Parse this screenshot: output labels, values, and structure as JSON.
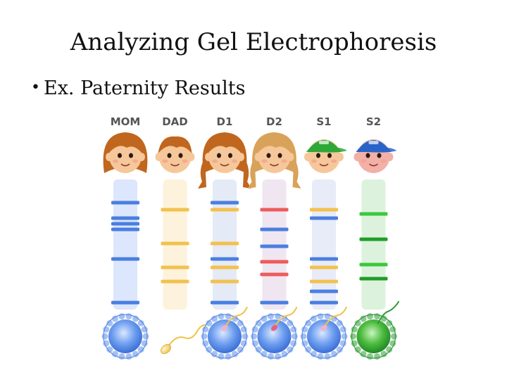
{
  "slide": {
    "title": "Analyzing Gel Electrophoresis",
    "bullet": "Ex. Paternity Results"
  },
  "lanes": [
    {
      "label": "MOM",
      "person": "mother",
      "hair": "#c0661e",
      "skin": "#f6c79a",
      "strip": "#d6e2fb",
      "cell": "egg",
      "bands": [
        {
          "level": 1.0,
          "color": "#4a7fe0"
        },
        {
          "level": 2.1,
          "color": "#4a7fe0"
        },
        {
          "level": 2.5,
          "color": "#4a7fe0"
        },
        {
          "level": 2.9,
          "color": "#4a7fe0"
        },
        {
          "level": 5.0,
          "color": "#4a7fe0"
        },
        {
          "level": 8.1,
          "color": "#4a7fe0"
        }
      ]
    },
    {
      "label": "DAD",
      "person": "father",
      "hair": "#c0661e",
      "skin": "#f6c79a",
      "strip": "#fdf1d6",
      "cell": "sperm",
      "bands": [
        {
          "level": 1.5,
          "color": "#f2c14e"
        },
        {
          "level": 3.9,
          "color": "#f2c14e"
        },
        {
          "level": 5.6,
          "color": "#f2c14e"
        },
        {
          "level": 6.6,
          "color": "#f2c14e"
        }
      ]
    },
    {
      "label": "D1",
      "person": "daughter",
      "hair": "#c0661e",
      "skin": "#f6c79a",
      "strip": "#e0e6f6",
      "cell": "egg",
      "bands": [
        {
          "level": 1.0,
          "color": "#4a7fe0"
        },
        {
          "level": 1.5,
          "color": "#f2c14e"
        },
        {
          "level": 3.9,
          "color": "#f2c14e"
        },
        {
          "level": 5.0,
          "color": "#4a7fe0"
        },
        {
          "level": 5.6,
          "color": "#f2c14e"
        },
        {
          "level": 6.6,
          "color": "#f2c14e"
        },
        {
          "level": 8.1,
          "color": "#4a7fe0"
        }
      ]
    },
    {
      "label": "D2",
      "person": "daughter",
      "hair": "#d9a25a",
      "skin": "#f6c79a",
      "strip": "#ece2ef",
      "cell": "egg",
      "bands": [
        {
          "level": 1.5,
          "color": "#ec5c5c"
        },
        {
          "level": 2.9,
          "color": "#4a7fe0"
        },
        {
          "level": 4.1,
          "color": "#4a7fe0"
        },
        {
          "level": 5.2,
          "color": "#ec5c5c"
        },
        {
          "level": 6.1,
          "color": "#ec5c5c"
        },
        {
          "level": 8.1,
          "color": "#4a7fe0"
        }
      ]
    },
    {
      "label": "S1",
      "person": "son",
      "hair": "#c0661e",
      "skin": "#f6c79a",
      "strip": "#e4e9f8",
      "cell": "egg",
      "cap": "#2ea836",
      "bands": [
        {
          "level": 1.5,
          "color": "#f2c14e"
        },
        {
          "level": 2.1,
          "color": "#4a7fe0"
        },
        {
          "level": 5.0,
          "color": "#4a7fe0"
        },
        {
          "level": 5.6,
          "color": "#f2c14e"
        },
        {
          "level": 6.6,
          "color": "#f2c14e"
        },
        {
          "level": 7.3,
          "color": "#4a7fe0"
        },
        {
          "level": 8.1,
          "color": "#4a7fe0"
        }
      ]
    },
    {
      "label": "S2",
      "person": "son",
      "hair": "#7a4a2a",
      "skin": "#f2b0a8",
      "strip": "#d7f0d7",
      "cell": "egg-green",
      "cap": "#2a64c8",
      "bands": [
        {
          "level": 1.8,
          "color": "#3cc83c"
        },
        {
          "level": 3.6,
          "color": "#1e9e28"
        },
        {
          "level": 5.4,
          "color": "#3cc83c"
        },
        {
          "level": 6.4,
          "color": "#1e9e28"
        }
      ]
    }
  ]
}
